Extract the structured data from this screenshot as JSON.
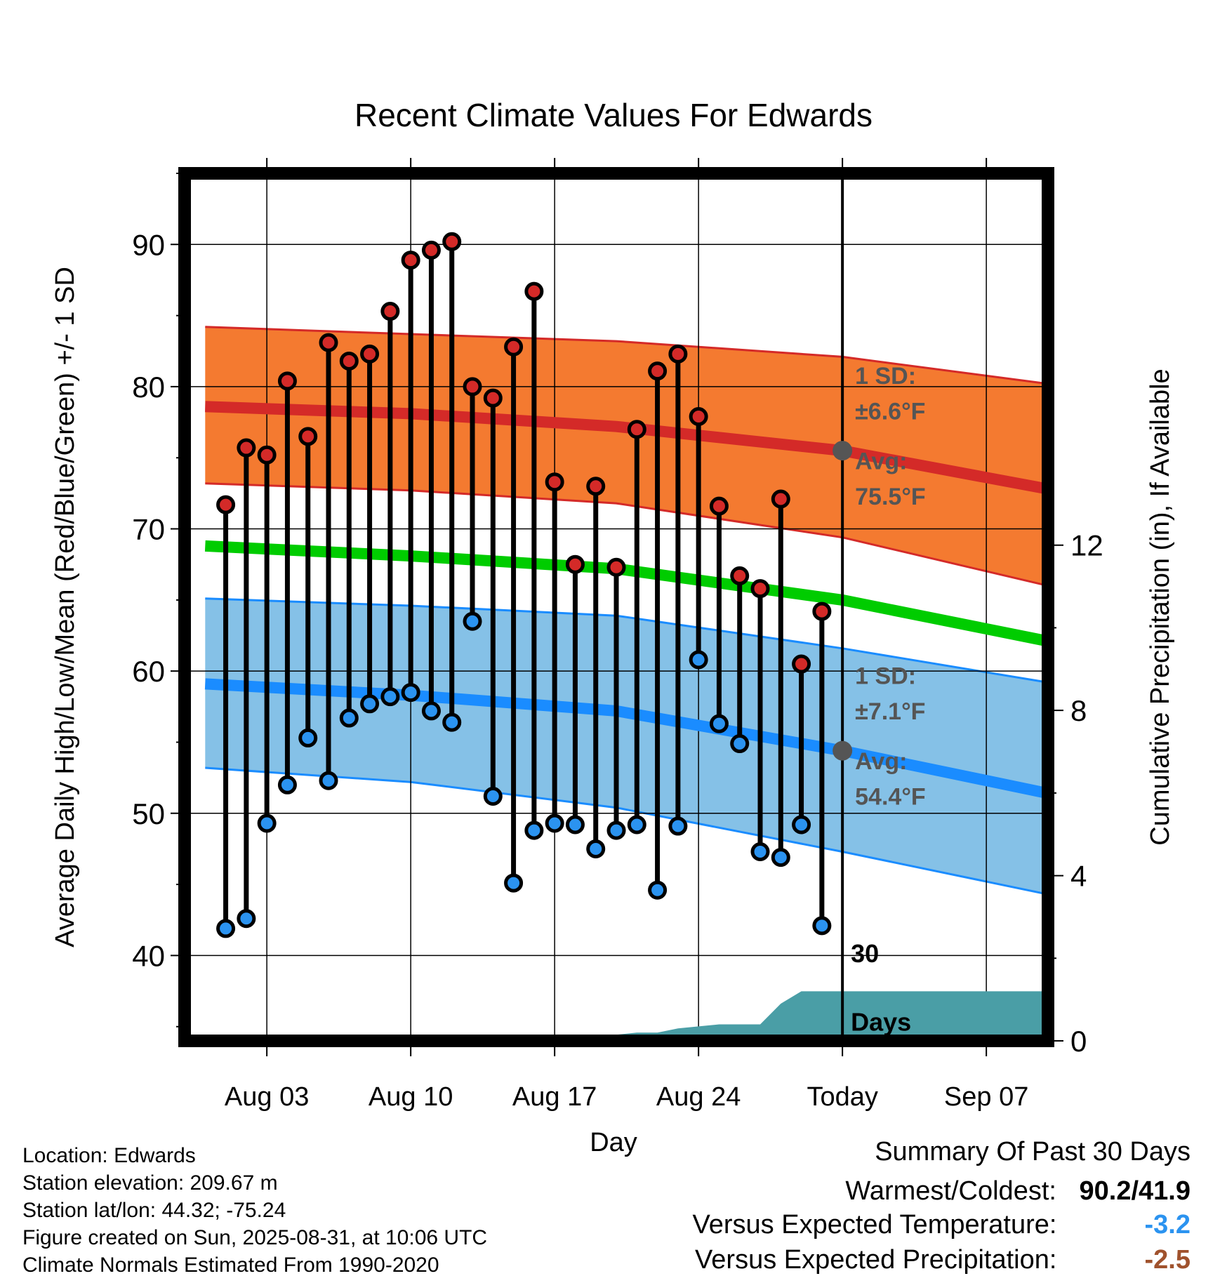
{
  "chart_data": {
    "type": "line",
    "title": "Recent Climate Values For Edwards",
    "xlabel": "Day",
    "ylabel": "Average Daily High/Low/Mean (Red/Blue/Green) +/- 1 SD",
    "y2label": "Cumulative Precipitation (in), If Available",
    "xlim": [
      "2025-07-30",
      "2025-09-10"
    ],
    "ylim": [
      34,
      95
    ],
    "y2lim": [
      0,
      21
    ],
    "x_ticks": [
      {
        "date": "2025-08-03",
        "label": "Aug 03"
      },
      {
        "date": "2025-08-10",
        "label": "Aug 10"
      },
      {
        "date": "2025-08-17",
        "label": "Aug 17"
      },
      {
        "date": "2025-08-24",
        "label": "Aug 24"
      },
      {
        "date": "2025-08-31",
        "label": "Today"
      },
      {
        "date": "2025-09-07",
        "label": "Sep 07"
      }
    ],
    "y_ticks": [
      40,
      50,
      60,
      70,
      80,
      90
    ],
    "y2_ticks": [
      0,
      4,
      8,
      12
    ],
    "grid": true,
    "today": "2025-08-31",
    "today_label_line1": "30",
    "today_label_line2": "Days",
    "dates": [
      "2025-08-01",
      "2025-08-02",
      "2025-08-03",
      "2025-08-04",
      "2025-08-05",
      "2025-08-06",
      "2025-08-07",
      "2025-08-08",
      "2025-08-09",
      "2025-08-10",
      "2025-08-11",
      "2025-08-12",
      "2025-08-13",
      "2025-08-14",
      "2025-08-15",
      "2025-08-16",
      "2025-08-17",
      "2025-08-18",
      "2025-08-19",
      "2025-08-20",
      "2025-08-21",
      "2025-08-22",
      "2025-08-23",
      "2025-08-24",
      "2025-08-25",
      "2025-08-26",
      "2025-08-27",
      "2025-08-28",
      "2025-08-29",
      "2025-08-30"
    ],
    "highs": [
      71.7,
      75.7,
      75.2,
      80.4,
      76.5,
      83.1,
      81.8,
      82.3,
      85.3,
      88.9,
      89.6,
      90.2,
      80.0,
      79.2,
      82.8,
      86.7,
      73.3,
      67.5,
      73.0,
      67.3,
      77.0,
      81.1,
      82.3,
      77.9,
      71.6,
      66.7,
      65.8,
      72.1,
      60.5,
      64.2
    ],
    "lows": [
      41.9,
      42.6,
      49.3,
      52.0,
      55.3,
      52.3,
      56.7,
      57.7,
      58.2,
      58.5,
      57.2,
      56.4,
      63.5,
      51.2,
      45.1,
      48.8,
      49.3,
      49.2,
      47.5,
      48.8,
      49.2,
      44.6,
      49.1,
      60.8,
      56.3,
      54.9,
      47.3,
      46.9,
      49.2,
      42.1
    ],
    "normals": {
      "dates": [
        "2025-07-31",
        "2025-08-10",
        "2025-08-20",
        "2025-08-31",
        "2025-09-10"
      ],
      "avg_high": [
        78.6,
        78.1,
        77.2,
        75.5,
        72.8
      ],
      "high_upper": [
        84.2,
        83.7,
        83.2,
        82.1,
        80.2
      ],
      "high_lower": [
        73.2,
        72.7,
        71.8,
        69.4,
        66.0
      ],
      "avg_mean": [
        68.8,
        68.1,
        67.2,
        65.0,
        62.1
      ],
      "avg_low": [
        59.1,
        58.3,
        57.2,
        54.4,
        51.4
      ],
      "low_upper": [
        65.1,
        64.6,
        63.9,
        61.6,
        59.2
      ],
      "low_lower": [
        53.2,
        52.2,
        50.4,
        47.3,
        44.3
      ]
    },
    "precip": {
      "dates": [
        "2025-08-17",
        "2025-08-18",
        "2025-08-19",
        "2025-08-20",
        "2025-08-21",
        "2025-08-22",
        "2025-08-23",
        "2025-08-24",
        "2025-08-25",
        "2025-08-26",
        "2025-08-27",
        "2025-08-28",
        "2025-08-29",
        "2025-08-30",
        "2025-08-31",
        "2025-09-10"
      ],
      "values": [
        0.0,
        0.0,
        0.1,
        0.15,
        0.2,
        0.2,
        0.3,
        0.35,
        0.4,
        0.4,
        0.4,
        0.9,
        1.2,
        1.2,
        1.2,
        1.2
      ]
    },
    "annotations": {
      "high_sd_label1": "1 SD:",
      "high_sd_label2": "±6.6°F",
      "high_avg_label1": "Avg:",
      "high_avg_label2": "75.5°F",
      "low_sd_label1": "1 SD:",
      "low_sd_label2": "±7.1°F",
      "low_avg_label1": "Avg:",
      "low_avg_label2": "54.4°F"
    },
    "colors": {
      "high_band": "#f47a30",
      "high_band_edge": "#d42a28",
      "high_avg": "#d42a28",
      "low_band": "#85c1e7",
      "low_band_edge": "#1a8cff",
      "low_avg": "#1a8cff",
      "mean": "#00cc00",
      "precip": "#4a9ea6",
      "high_marker": "#d42a28",
      "low_marker": "#2b93f0",
      "today_marker": "#555555",
      "annotation_text": "#555555"
    }
  },
  "info": {
    "location": "Location: Edwards",
    "elevation": "Station elevation: 209.67 m",
    "latlon": "Station lat/lon: 44.32; -75.24",
    "created": "Figure created on Sun, 2025-08-31, at 10:06 UTC",
    "normals": "Climate Normals Estimated From 1990-2020"
  },
  "summary": {
    "title": "Summary Of Past 30 Days",
    "warm_cold_label": "Warmest/Coldest:",
    "warm_cold_value": "90.2/41.9",
    "temp_label": "Versus Expected Temperature:",
    "temp_value": "-3.2",
    "temp_color": "#2b93f0",
    "precip_label": "Versus Expected Precipitation:",
    "precip_value": "-2.5",
    "precip_color": "#a0522d"
  }
}
